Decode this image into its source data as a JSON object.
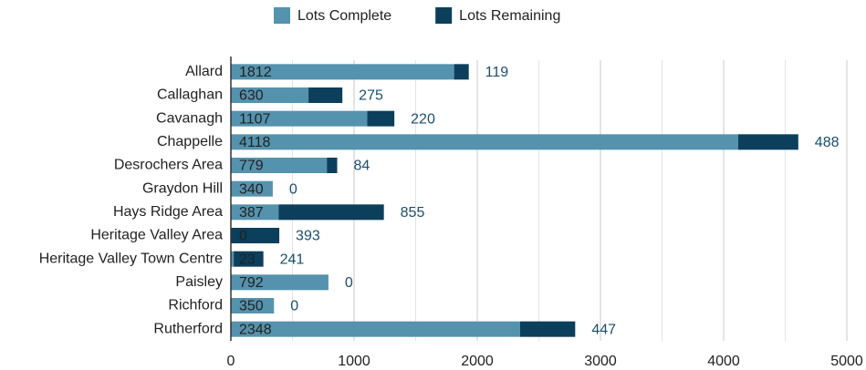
{
  "chart_data": {
    "type": "stacked_barh",
    "categories": [
      "Allard",
      "Callaghan",
      "Cavanagh",
      "Chappelle",
      "Desrochers Area",
      "Graydon Hill",
      "Hays Ridge Area",
      "Heritage Valley Area",
      "Heritage Valley Town Centre",
      "Paisley",
      "Richford",
      "Rutherford"
    ],
    "series": [
      {
        "name": "Lots Complete",
        "color": "#5592ad",
        "values": [
          1812,
          630,
          1107,
          4118,
          779,
          340,
          387,
          0,
          23,
          792,
          350,
          2348
        ]
      },
      {
        "name": "Lots Remaining",
        "color": "#0b3f5c",
        "values": [
          119,
          275,
          220,
          488,
          84,
          0,
          855,
          393,
          241,
          0,
          0,
          447
        ]
      }
    ],
    "xlim": [
      0,
      5000
    ],
    "xticks": [
      0,
      1000,
      2000,
      3000,
      4000,
      5000
    ],
    "grid": true,
    "minor_grid": true,
    "legend": "top"
  }
}
